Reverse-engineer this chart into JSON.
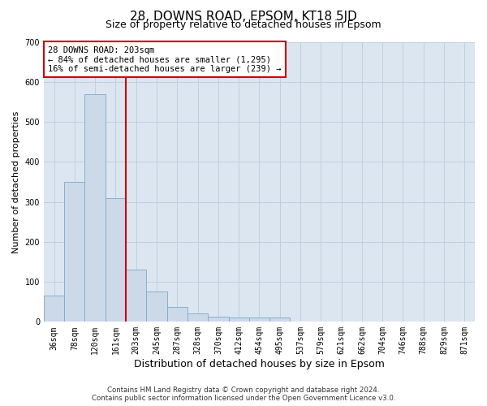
{
  "title": "28, DOWNS ROAD, EPSOM, KT18 5JD",
  "subtitle": "Size of property relative to detached houses in Epsom",
  "xlabel": "Distribution of detached houses by size in Epsom",
  "ylabel": "Number of detached properties",
  "categories": [
    "36sqm",
    "78sqm",
    "120sqm",
    "161sqm",
    "203sqm",
    "245sqm",
    "287sqm",
    "328sqm",
    "370sqm",
    "412sqm",
    "454sqm",
    "495sqm",
    "537sqm",
    "579sqm",
    "621sqm",
    "662sqm",
    "704sqm",
    "746sqm",
    "788sqm",
    "829sqm",
    "871sqm"
  ],
  "values": [
    65,
    350,
    570,
    310,
    130,
    75,
    38,
    20,
    12,
    10,
    10,
    10,
    0,
    0,
    0,
    0,
    0,
    0,
    0,
    0,
    0
  ],
  "bar_color": "#ccd9e8",
  "bar_edge_color": "#7aaacb",
  "property_line_color": "#cc0000",
  "annotation_text": "28 DOWNS ROAD: 203sqm\n← 84% of detached houses are smaller (1,295)\n16% of semi-detached houses are larger (239) →",
  "annotation_box_color": "#cc0000",
  "ylim": [
    0,
    700
  ],
  "yticks": [
    0,
    100,
    200,
    300,
    400,
    500,
    600,
    700
  ],
  "grid_color": "#c0cfe0",
  "background_color": "#dce6f0",
  "footer_line1": "Contains HM Land Registry data © Crown copyright and database right 2024.",
  "footer_line2": "Contains public sector information licensed under the Open Government Licence v3.0.",
  "title_fontsize": 11,
  "subtitle_fontsize": 9,
  "ylabel_fontsize": 8,
  "xlabel_fontsize": 9,
  "tick_fontsize": 7,
  "annotation_fontsize": 7.5,
  "bar_width": 1.0
}
